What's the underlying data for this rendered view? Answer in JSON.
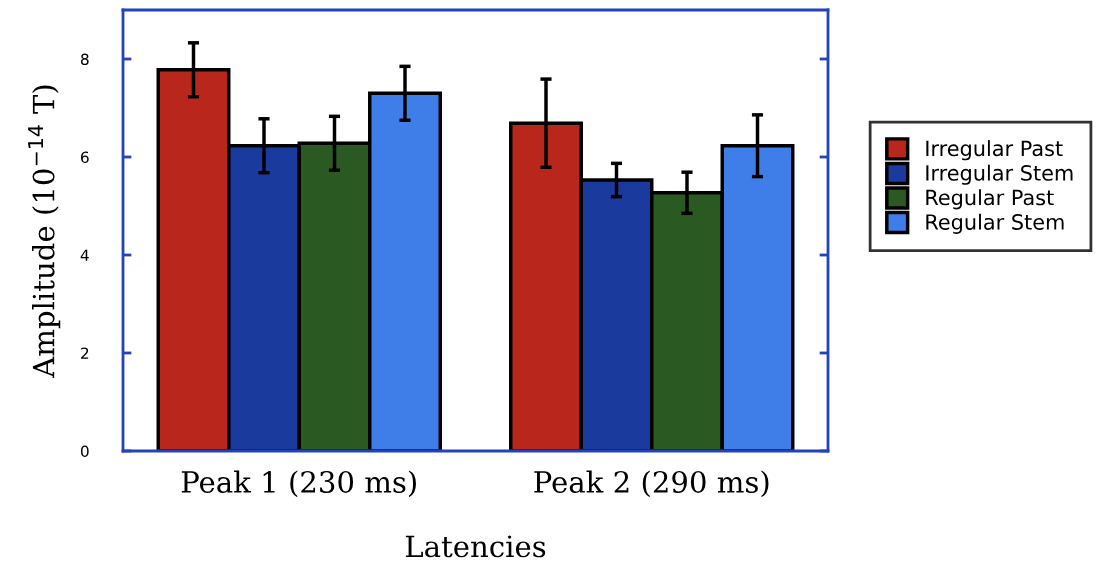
{
  "chart_data": {
    "type": "bar",
    "xlabel": "Latencies",
    "ylabel": "Amplitude (10$^{−14}$ T)",
    "categories": [
      "Peak 1 (230 ms)",
      "Peak 2 (290 ms)"
    ],
    "series": [
      {
        "name": "Irregular Past",
        "color": "#b8261c",
        "values": [
          7.78,
          6.69
        ],
        "errors": [
          0.55,
          0.9
        ]
      },
      {
        "name": "Irregular Stem",
        "color": "#1a3a9e",
        "values": [
          6.23,
          5.53
        ],
        "errors": [
          0.55,
          0.34
        ]
      },
      {
        "name": "Regular Past",
        "color": "#2a5a22",
        "values": [
          6.28,
          5.27
        ],
        "errors": [
          0.55,
          0.42
        ]
      },
      {
        "name": "Regular Stem",
        "color": "#3f7ee8",
        "values": [
          7.3,
          6.23
        ],
        "errors": [
          0.55,
          0.63
        ]
      }
    ],
    "ylim": [
      0,
      9
    ],
    "yticks": [
      0,
      2,
      4,
      6,
      8
    ],
    "grid": false,
    "legend": "right"
  }
}
